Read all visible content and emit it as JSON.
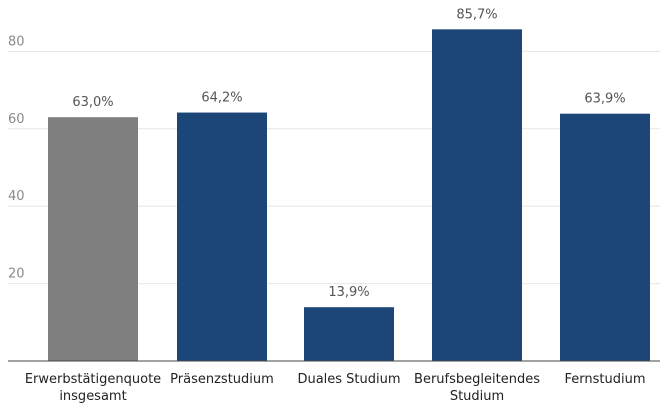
{
  "chart_data": {
    "type": "bar",
    "categories": [
      [
        "Erwerbstätigenquote",
        "insgesamt"
      ],
      [
        "Präsenzstudium"
      ],
      [
        "Duales Studium"
      ],
      [
        "Berufsbegleitendes",
        "Studium"
      ],
      [
        "Fernstudium"
      ]
    ],
    "values": [
      63.0,
      64.2,
      13.9,
      85.7,
      63.9
    ],
    "value_labels": [
      "63,0%",
      "64,2%",
      "13,9%",
      "85,7%",
      "63,9%"
    ],
    "bar_colors": [
      "#7f7f7f",
      "#1b4677",
      "#1b4677",
      "#1b4677",
      "#1b4677"
    ],
    "yticks": [
      20,
      40,
      60,
      80
    ],
    "ylim": [
      0,
      90
    ],
    "grid": true,
    "title": "",
    "xlabel": "",
    "ylabel": ""
  }
}
